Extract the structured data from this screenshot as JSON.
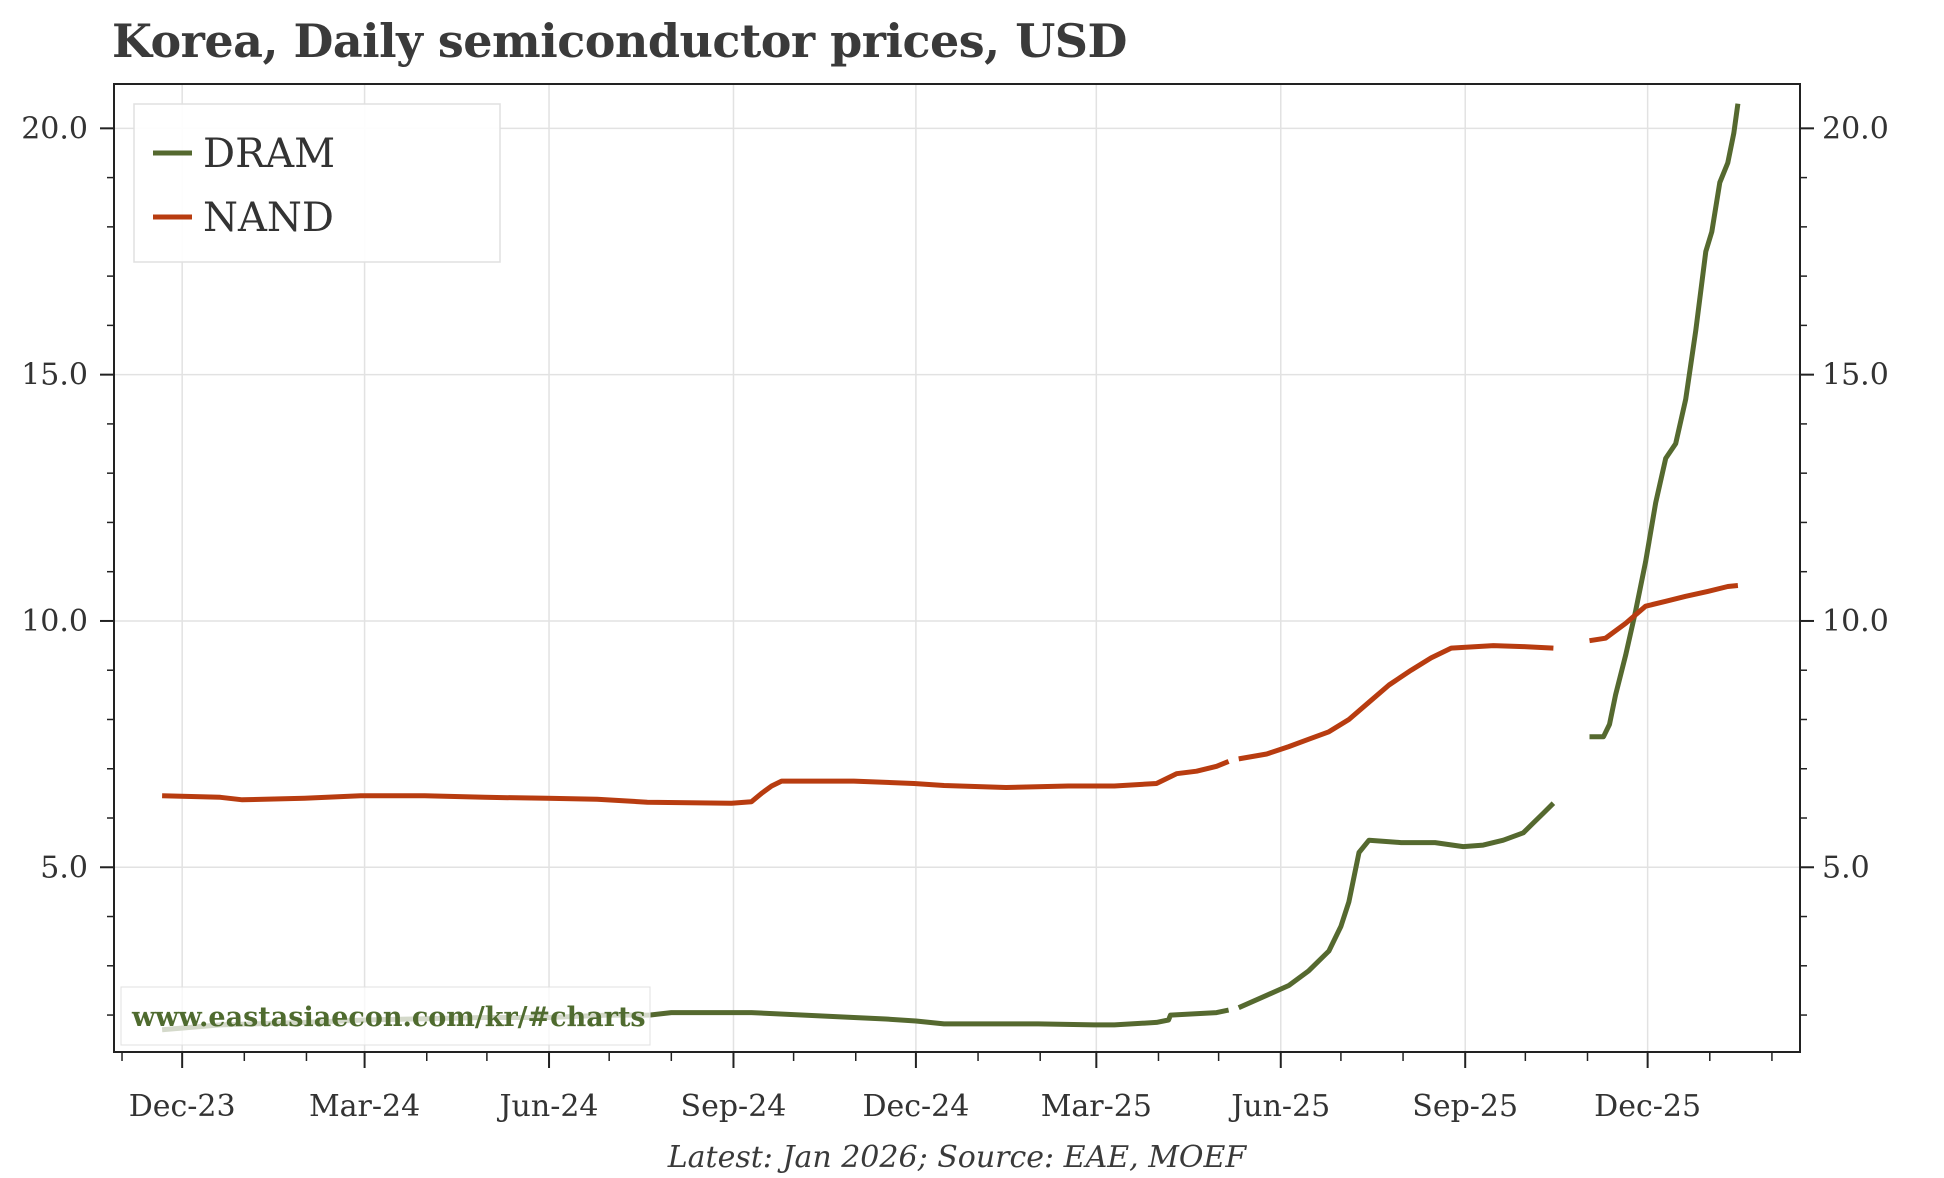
{
  "chart_data": {
    "type": "line",
    "title": "Korea, Daily semiconductor prices, USD",
    "caption": "Latest: Jan 2026; Source: EAE, MOEF",
    "watermark": "www.eastasiaecon.com/kr/#charts",
    "ylim": [
      1.25,
      20.9
    ],
    "y_ticks": [
      5.0,
      10.0,
      15.0,
      20.0
    ],
    "y_tick_labels": [
      "5.0",
      "10.0",
      "15.0",
      "20.0"
    ],
    "x_ticks": [
      "2023-12-01",
      "2024-03-01",
      "2024-06-01",
      "2024-09-01",
      "2024-12-01",
      "2025-03-01",
      "2025-06-01",
      "2025-09-01",
      "2025-12-01"
    ],
    "x_tick_labels": [
      "Dec-23",
      "Mar-24",
      "Jun-24",
      "Sep-24",
      "Dec-24",
      "Mar-25",
      "Jun-25",
      "Sep-25",
      "Dec-25"
    ],
    "grid": true,
    "legend": "top-left",
    "colors": {
      "DRAM": "#55692f",
      "NAND": "#b83c10"
    },
    "series": [
      {
        "name": "DRAM",
        "segments": [
          [
            [
              "2023-11-21",
              1.7
            ],
            [
              "2023-12-20",
              1.8
            ],
            [
              "2024-01-31",
              1.85
            ],
            [
              "2024-03-01",
              1.9
            ],
            [
              "2024-04-30",
              1.95
            ],
            [
              "2024-06-01",
              1.95
            ],
            [
              "2024-06-30",
              2.0
            ],
            [
              "2024-07-21",
              2.0
            ],
            [
              "2024-08-01",
              2.05
            ],
            [
              "2024-09-10",
              2.05
            ],
            [
              "2024-10-31",
              1.95
            ],
            [
              "2024-11-16",
              1.92
            ],
            [
              "2024-12-01",
              1.88
            ],
            [
              "2024-12-15",
              1.82
            ],
            [
              "2025-01-31",
              1.82
            ],
            [
              "2025-02-28",
              1.8
            ],
            [
              "2025-03-10",
              1.8
            ],
            [
              "2025-03-31",
              1.85
            ],
            [
              "2025-04-06",
              1.9
            ],
            [
              "2025-04-07",
              2.0
            ],
            [
              "2025-04-30",
              2.05
            ],
            [
              "2025-05-06",
              2.1
            ]
          ],
          [
            [
              "2025-05-11",
              2.15
            ],
            [
              "2025-05-25",
              2.4
            ],
            [
              "2025-06-05",
              2.6
            ],
            [
              "2025-06-15",
              2.9
            ],
            [
              "2025-06-25",
              3.3
            ],
            [
              "2025-07-01",
              3.8
            ],
            [
              "2025-07-05",
              4.3
            ],
            [
              "2025-07-10",
              5.3
            ],
            [
              "2025-07-15",
              5.55
            ],
            [
              "2025-07-31",
              5.5
            ],
            [
              "2025-08-17",
              5.5
            ],
            [
              "2025-08-31",
              5.42
            ],
            [
              "2025-09-10",
              5.45
            ],
            [
              "2025-09-20",
              5.55
            ],
            [
              "2025-09-30",
              5.7
            ],
            [
              "2025-10-05",
              5.9
            ],
            [
              "2025-10-10",
              6.1
            ],
            [
              "2025-10-15",
              6.3
            ]
          ],
          [
            [
              "2025-11-02",
              7.65
            ],
            [
              "2025-11-09",
              7.65
            ],
            [
              "2025-11-12",
              7.9
            ],
            [
              "2025-11-15",
              8.5
            ],
            [
              "2025-11-20",
              9.3
            ],
            [
              "2025-11-25",
              10.2
            ],
            [
              "2025-11-30",
              11.2
            ],
            [
              "2025-12-05",
              12.4
            ],
            [
              "2025-12-10",
              13.3
            ],
            [
              "2025-12-15",
              13.6
            ],
            [
              "2025-12-20",
              14.5
            ],
            [
              "2025-12-25",
              15.9
            ],
            [
              "2025-12-30",
              17.5
            ],
            [
              "2026-01-02",
              17.9
            ],
            [
              "2026-01-06",
              18.9
            ],
            [
              "2026-01-10",
              19.3
            ],
            [
              "2026-01-13",
              19.9
            ],
            [
              "2026-01-15",
              20.5
            ]
          ]
        ]
      },
      {
        "name": "NAND",
        "segments": [
          [
            [
              "2023-11-21",
              6.45
            ],
            [
              "2023-12-20",
              6.42
            ],
            [
              "2023-12-31",
              6.37
            ],
            [
              "2024-01-31",
              6.4
            ],
            [
              "2024-02-28",
              6.45
            ],
            [
              "2024-03-31",
              6.45
            ],
            [
              "2024-04-30",
              6.42
            ],
            [
              "2024-05-31",
              6.4
            ],
            [
              "2024-06-25",
              6.38
            ],
            [
              "2024-07-20",
              6.32
            ],
            [
              "2024-08-31",
              6.3
            ],
            [
              "2024-09-10",
              6.33
            ],
            [
              "2024-09-15",
              6.5
            ],
            [
              "2024-09-20",
              6.65
            ],
            [
              "2024-09-25",
              6.75
            ],
            [
              "2024-10-31",
              6.75
            ],
            [
              "2024-11-30",
              6.7
            ],
            [
              "2024-12-15",
              6.66
            ],
            [
              "2025-01-15",
              6.62
            ],
            [
              "2025-02-15",
              6.65
            ],
            [
              "2025-03-10",
              6.65
            ],
            [
              "2025-03-31",
              6.7
            ],
            [
              "2025-04-10",
              6.9
            ],
            [
              "2025-04-20",
              6.95
            ],
            [
              "2025-04-30",
              7.05
            ],
            [
              "2025-05-06",
              7.15
            ]
          ],
          [
            [
              "2025-05-11",
              7.2
            ],
            [
              "2025-05-25",
              7.3
            ],
            [
              "2025-06-05",
              7.45
            ],
            [
              "2025-06-15",
              7.6
            ],
            [
              "2025-06-25",
              7.75
            ],
            [
              "2025-07-05",
              8.0
            ],
            [
              "2025-07-15",
              8.35
            ],
            [
              "2025-07-25",
              8.7
            ],
            [
              "2025-08-05",
              9.0
            ],
            [
              "2025-08-15",
              9.25
            ],
            [
              "2025-08-25",
              9.45
            ],
            [
              "2025-09-15",
              9.5
            ],
            [
              "2025-09-30",
              9.48
            ],
            [
              "2025-10-15",
              9.45
            ]
          ],
          [
            [
              "2025-11-02",
              9.6
            ],
            [
              "2025-11-10",
              9.65
            ],
            [
              "2025-11-20",
              9.95
            ],
            [
              "2025-11-30",
              10.3
            ],
            [
              "2025-12-10",
              10.4
            ],
            [
              "2025-12-20",
              10.5
            ],
            [
              "2025-12-31",
              10.6
            ],
            [
              "2026-01-10",
              10.7
            ],
            [
              "2026-01-15",
              10.72
            ]
          ]
        ]
      }
    ]
  }
}
